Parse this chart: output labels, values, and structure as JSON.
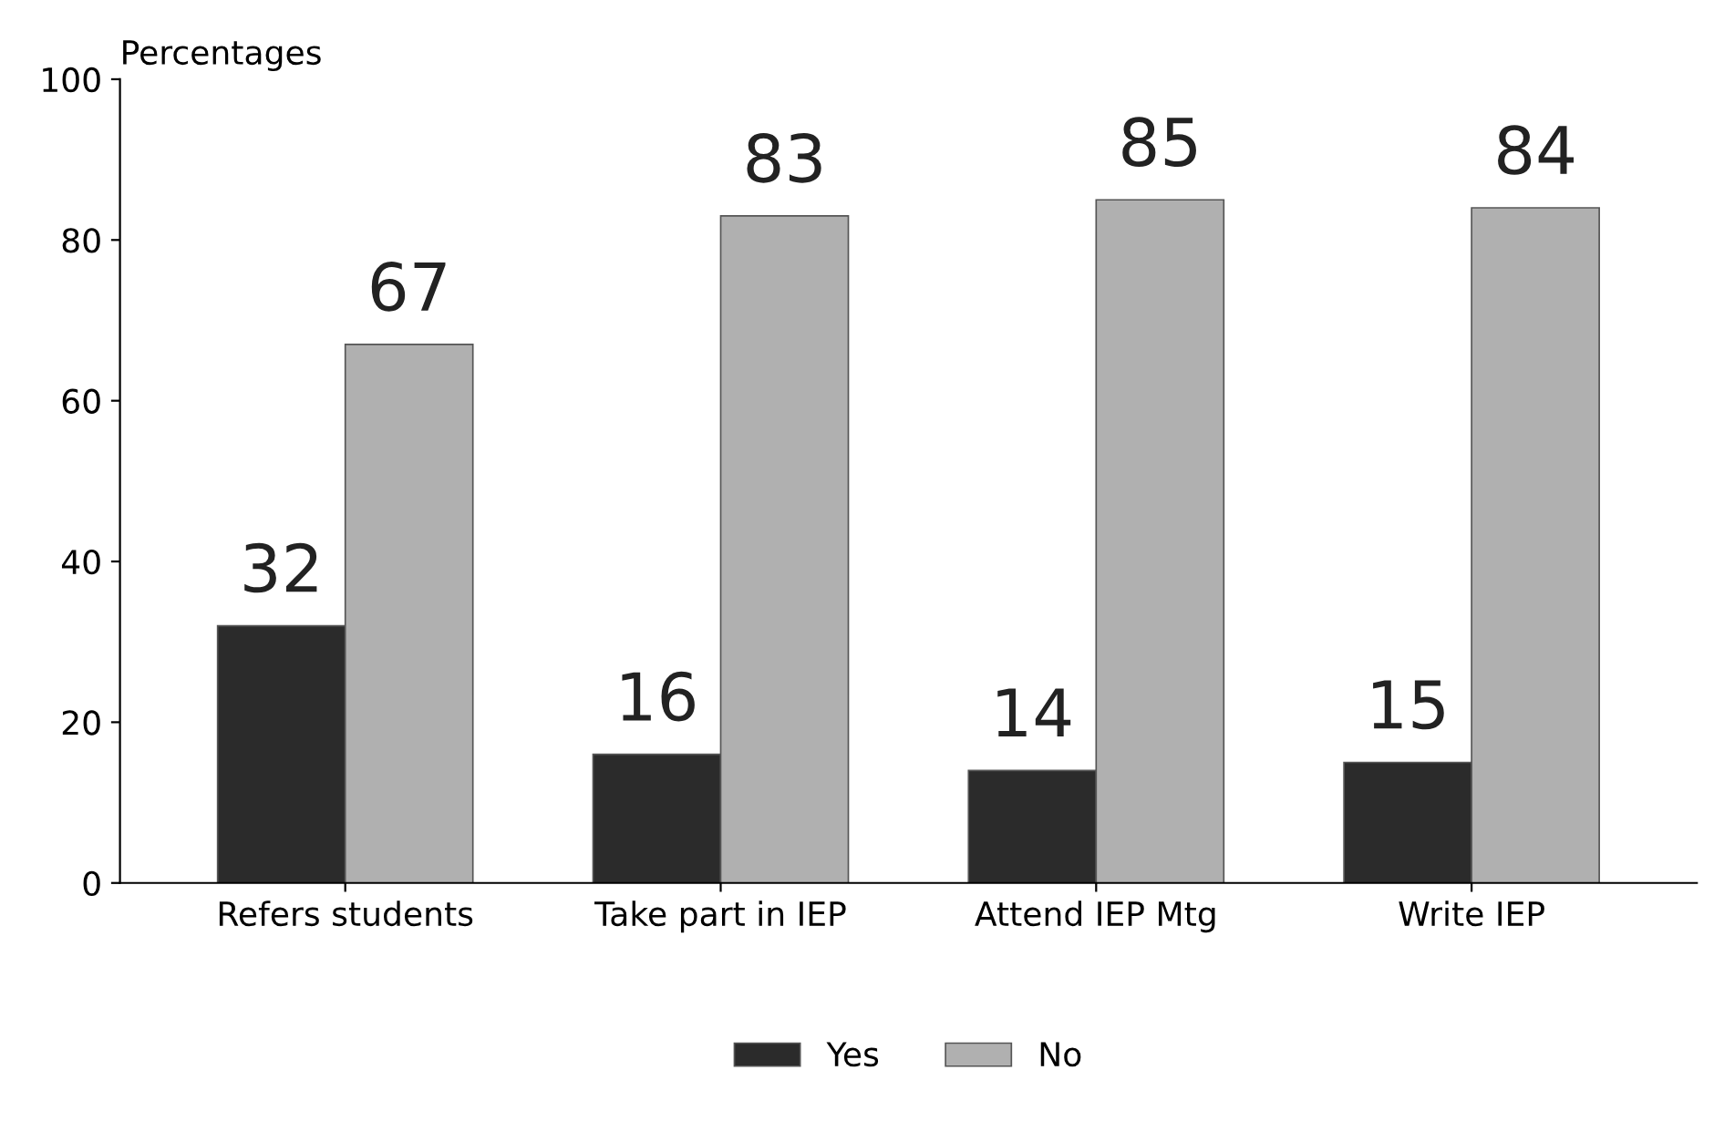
{
  "chart_data": {
    "type": "bar",
    "ylabel": "Percentages",
    "categories": [
      "Refers students",
      "Take part in IEP",
      "Attend IEP Mtg",
      "Write IEP"
    ],
    "series": [
      {
        "name": "Yes",
        "color": "#2b2b2b",
        "values": [
          32,
          16,
          14,
          15
        ]
      },
      {
        "name": "No",
        "color": "#b0b0b0",
        "values": [
          67,
          83,
          85,
          84
        ]
      }
    ],
    "ylim": [
      0,
      100
    ],
    "yticks": [
      0,
      20,
      40,
      60,
      80,
      100
    ],
    "data_labels": true,
    "legend": "bottom",
    "grid": false
  }
}
